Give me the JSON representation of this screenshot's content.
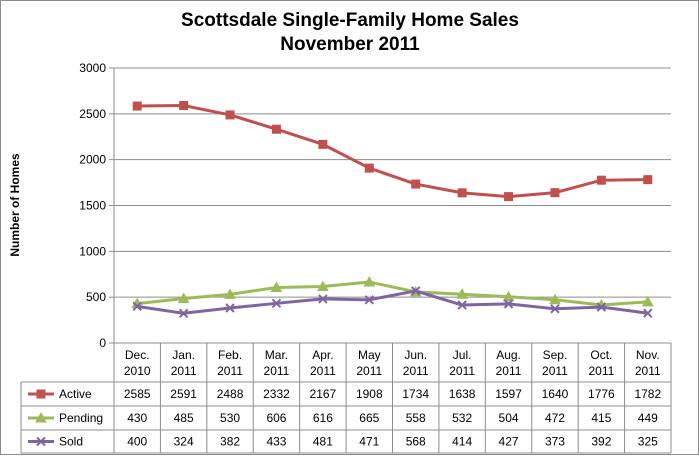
{
  "chart_data": {
    "type": "line",
    "title_lines": [
      "Scottsdale Single-Family  Home Sales",
      "November 2011"
    ],
    "ylabel": "Number of Homes",
    "ylim": [
      0,
      3000
    ],
    "yticks": [
      0,
      500,
      1000,
      1500,
      2000,
      2500,
      3000
    ],
    "grid": "horizontal",
    "legend": "data-table",
    "categories": [
      [
        "Dec.",
        "2010"
      ],
      [
        "Jan.",
        "2011"
      ],
      [
        "Feb.",
        "2011"
      ],
      [
        "Mar.",
        "2011"
      ],
      [
        "Apr.",
        "2011"
      ],
      [
        "May",
        "2011"
      ],
      [
        "Jun.",
        "2011"
      ],
      [
        "Jul.",
        "2011"
      ],
      [
        "Aug.",
        "2011"
      ],
      [
        "Sep.",
        "2011"
      ],
      [
        "Oct.",
        "2011"
      ],
      [
        "Nov.",
        "2011"
      ]
    ],
    "series": [
      {
        "name": "Active",
        "color": "#c0504d",
        "marker": "square",
        "values": [
          2585,
          2591,
          2488,
          2332,
          2167,
          1908,
          1734,
          1638,
          1597,
          1640,
          1776,
          1782
        ]
      },
      {
        "name": "Pending",
        "color": "#9bbb59",
        "marker": "triangle",
        "values": [
          430,
          485,
          530,
          606,
          616,
          665,
          558,
          532,
          504,
          472,
          415,
          449
        ]
      },
      {
        "name": "Sold",
        "color": "#8064a2",
        "marker": "x",
        "values": [
          400,
          324,
          382,
          433,
          481,
          471,
          568,
          414,
          427,
          373,
          392,
          325
        ]
      }
    ]
  }
}
